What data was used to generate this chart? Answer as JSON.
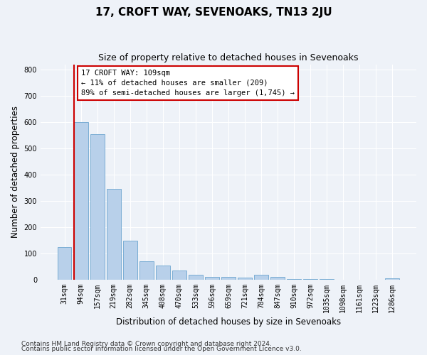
{
  "title": "17, CROFT WAY, SEVENOAKS, TN13 2JU",
  "subtitle": "Size of property relative to detached houses in Sevenoaks",
  "xlabel": "Distribution of detached houses by size in Sevenoaks",
  "ylabel": "Number of detached properties",
  "categories": [
    "31sqm",
    "94sqm",
    "157sqm",
    "219sqm",
    "282sqm",
    "345sqm",
    "408sqm",
    "470sqm",
    "533sqm",
    "596sqm",
    "659sqm",
    "721sqm",
    "784sqm",
    "847sqm",
    "910sqm",
    "972sqm",
    "1035sqm",
    "1098sqm",
    "1161sqm",
    "1223sqm",
    "1286sqm"
  ],
  "values": [
    125,
    600,
    555,
    345,
    150,
    70,
    53,
    35,
    18,
    12,
    10,
    7,
    20,
    10,
    4,
    3,
    2,
    1,
    0,
    0,
    5
  ],
  "bar_color": "#b8d0ea",
  "bar_edge_color": "#7aadd4",
  "vline_color": "#cc0000",
  "annotation_text": "17 CROFT WAY: 109sqm\n← 11% of detached houses are smaller (209)\n89% of semi-detached houses are larger (1,745) →",
  "annotation_box_color": "#ffffff",
  "annotation_box_edge": "#cc0000",
  "ylim": [
    0,
    820
  ],
  "yticks": [
    0,
    100,
    200,
    300,
    400,
    500,
    600,
    700,
    800
  ],
  "footer1": "Contains HM Land Registry data © Crown copyright and database right 2024.",
  "footer2": "Contains public sector information licensed under the Open Government Licence v3.0.",
  "bg_color": "#eef2f8",
  "plot_bg_color": "#eef2f8",
  "title_fontsize": 11,
  "subtitle_fontsize": 9,
  "axis_label_fontsize": 8.5,
  "tick_fontsize": 7,
  "footer_fontsize": 6.5,
  "annotation_fontsize": 7.5
}
